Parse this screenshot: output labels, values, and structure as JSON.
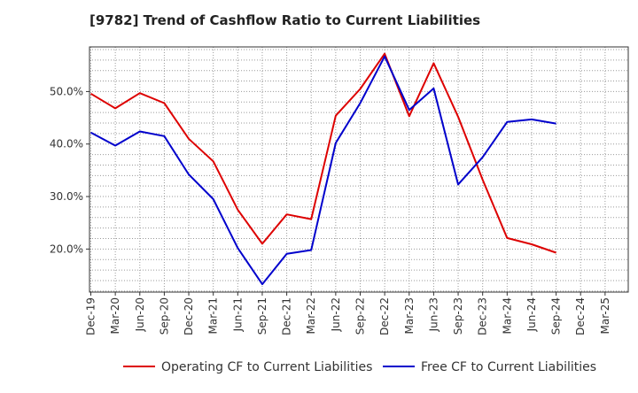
{
  "chart_data": {
    "type": "line",
    "title": "[9782]  Trend of Cashflow Ratio to Current Liabilities",
    "xlabel": "",
    "ylabel": "",
    "categories": [
      "Dec-19",
      "Mar-20",
      "Jun-20",
      "Sep-20",
      "Dec-20",
      "Mar-21",
      "Jun-21",
      "Sep-21",
      "Dec-21",
      "Mar-22",
      "Jun-22",
      "Sep-22",
      "Dec-22",
      "Mar-23",
      "Jun-23",
      "Sep-23",
      "Dec-23",
      "Mar-24",
      "Jun-24",
      "Sep-24",
      "Dec-24",
      "Mar-25"
    ],
    "yticks": [
      20,
      30,
      40,
      50
    ],
    "ytick_labels": [
      "20.0%",
      "30.0%",
      "40.0%",
      "50.0%"
    ],
    "ylim": [
      11.8,
      58.5
    ],
    "grid": true,
    "legend_position": "bottom",
    "series": [
      {
        "name": "Operating CF to Current Liabilities",
        "color": "#dd0000",
        "values": [
          49.6,
          46.8,
          49.7,
          47.8,
          41.0,
          36.7,
          27.5,
          21.0,
          26.6,
          25.7,
          45.4,
          50.5,
          57.2,
          45.3,
          55.4,
          45.2,
          33.2,
          22.1,
          20.9,
          19.3,
          null,
          null
        ]
      },
      {
        "name": "Free CF to Current Liabilities",
        "color": "#0000cc",
        "values": [
          42.2,
          39.7,
          42.4,
          41.5,
          34.2,
          29.5,
          20.2,
          13.3,
          19.1,
          19.8,
          40.2,
          47.8,
          56.7,
          46.5,
          50.6,
          32.3,
          37.5,
          44.2,
          44.7,
          43.9,
          null,
          null
        ]
      }
    ]
  }
}
